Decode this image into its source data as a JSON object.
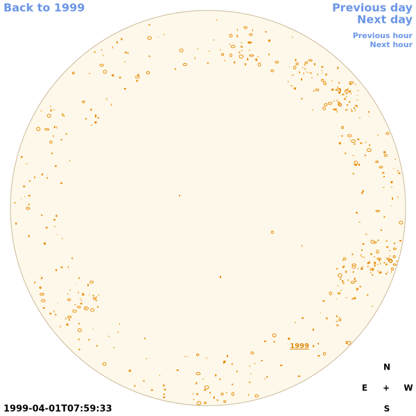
{
  "navigation": {
    "back": "Back to 1999",
    "previous_day": "Previous day",
    "next_day": "Next day",
    "previous_hour": "Previous hour",
    "next_hour": "Next hour"
  },
  "disk": {
    "label": "1999"
  },
  "compass": {
    "north": "N",
    "east": "E",
    "center": "+",
    "west": "W",
    "south": "S"
  },
  "timestamp": "1999-04-01T07:59:33"
}
